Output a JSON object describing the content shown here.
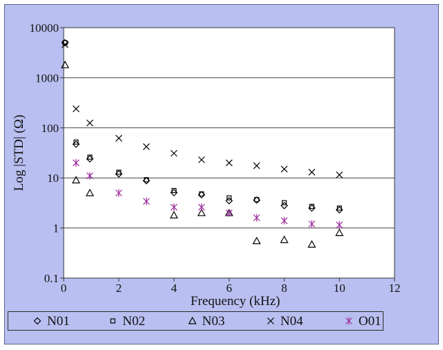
{
  "chart_data": {
    "type": "scatter",
    "title": "",
    "xlabel": "Frequency (kHz)",
    "ylabel": "Log |STD| (Ω)",
    "xlim": [
      0,
      12
    ],
    "ylim": [
      0.1,
      10000
    ],
    "yscale": "log",
    "xticks": [
      "0",
      "2",
      "4",
      "6",
      "8",
      "10",
      "12"
    ],
    "yticks": [
      "0.1",
      "1",
      "10",
      "100",
      "1000",
      "10000"
    ],
    "grid": "horizontal",
    "legend_position": "bottom",
    "series": [
      {
        "name": "N01",
        "marker": "diamond",
        "color": "#000000",
        "x": [
          0.05,
          0.45,
          0.95,
          2,
          3,
          4,
          5,
          6,
          7,
          8,
          9,
          10
        ],
        "y": [
          5000,
          47,
          24,
          12,
          8.8,
          5.1,
          4.6,
          3.5,
          3.6,
          2.8,
          2.5,
          2.3
        ]
      },
      {
        "name": "N02",
        "marker": "square",
        "color": "#000000",
        "x": [
          0.05,
          0.45,
          0.95,
          2,
          3,
          4,
          5,
          6,
          7,
          8,
          9,
          10
        ],
        "y": [
          5000,
          52,
          26,
          13,
          9.2,
          5.6,
          4.8,
          4.0,
          3.7,
          3.2,
          2.7,
          2.5
        ]
      },
      {
        "name": "N03",
        "marker": "triangle",
        "color": "#000000",
        "x": [
          0.05,
          0.45,
          0.95,
          4,
          5,
          6,
          7,
          8,
          9,
          10
        ],
        "y": [
          1800,
          9.0,
          5.0,
          1.8,
          2.0,
          2.0,
          0.55,
          0.58,
          0.47,
          0.8
        ]
      },
      {
        "name": "N04",
        "marker": "x",
        "color": "#000000",
        "x": [
          0.05,
          0.45,
          0.95,
          2,
          3,
          4,
          5,
          6,
          7,
          8,
          9,
          10
        ],
        "y": [
          4600,
          240,
          125,
          62,
          42,
          31,
          23,
          20,
          17.5,
          15,
          13,
          11.5
        ]
      },
      {
        "name": "O01",
        "marker": "asterisk",
        "color": "#9b2a9b",
        "x": [
          0.45,
          0.95,
          2,
          3,
          4,
          5,
          6,
          7,
          8,
          9,
          10
        ],
        "y": [
          20,
          11,
          5.0,
          3.4,
          2.6,
          2.6,
          2.0,
          1.6,
          1.4,
          1.2,
          1.15
        ]
      }
    ]
  }
}
